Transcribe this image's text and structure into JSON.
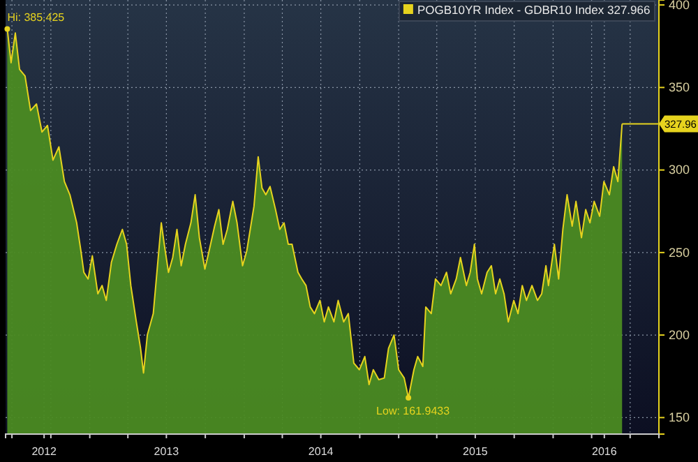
{
  "chart_data": {
    "type": "area",
    "legend": "top right",
    "grid": true,
    "xlim": [
      "2012-06-16",
      "2016-09-07"
    ],
    "ylim": [
      140,
      403
    ],
    "yticks": [
      150,
      200,
      250,
      300,
      350,
      400
    ],
    "xticks": [
      {
        "value": "2012-07-01",
        "label": null
      },
      {
        "value": "2012-09-15",
        "label": "2012"
      },
      {
        "value": "2012-10-01",
        "label": null
      },
      {
        "value": "2013-01-01",
        "label": null
      },
      {
        "value": "2013-04-01",
        "label": null
      },
      {
        "value": "2013-07-01",
        "label": "2013"
      },
      {
        "value": "2013-10-01",
        "label": null
      },
      {
        "value": "2014-01-01",
        "label": null
      },
      {
        "value": "2014-04-01",
        "label": null
      },
      {
        "value": "2014-07-01",
        "label": "2014"
      },
      {
        "value": "2014-10-01",
        "label": null
      },
      {
        "value": "2015-01-01",
        "label": null
      },
      {
        "value": "2015-04-01",
        "label": null
      },
      {
        "value": "2015-07-01",
        "label": "2015"
      },
      {
        "value": "2015-10-01",
        "label": null
      },
      {
        "value": "2016-01-01",
        "label": null
      },
      {
        "value": "2016-04-01",
        "label": null
      },
      {
        "value": "2016-05-01",
        "label": "2016"
      },
      {
        "value": "2016-07-01",
        "label": null
      }
    ],
    "annotations": [
      {
        "text": "Hi: 385.425",
        "x": "2012-06-20",
        "y": 385.425
      },
      {
        "text": "Low: 161.9433",
        "x": "2015-01-24",
        "y": 161.9433
      },
      "327.96"
    ],
    "series": [
      {
        "name": "POGB10YR Index - GDBR10 Index 327.966",
        "color": "#e6d31e",
        "x": [
          "2012-06-20",
          "2012-06-29",
          "2012-07-09",
          "2012-07-19",
          "2012-08-01",
          "2012-08-14",
          "2012-08-28",
          "2012-09-10",
          "2012-09-23",
          "2012-10-06",
          "2012-10-20",
          "2012-11-02",
          "2012-11-15",
          "2012-12-01",
          "2012-12-11",
          "2012-12-18",
          "2012-12-28",
          "2013-01-07",
          "2013-01-20",
          "2013-01-30",
          "2013-02-09",
          "2013-02-21",
          "2013-03-06",
          "2013-03-19",
          "2013-03-29",
          "2013-04-08",
          "2013-04-21",
          "2013-05-01",
          "2013-05-08",
          "2013-05-17",
          "2013-05-31",
          "2013-06-10",
          "2013-06-19",
          "2013-06-26",
          "2013-07-06",
          "2013-07-16",
          "2013-07-26",
          "2013-08-05",
          "2013-08-15",
          "2013-08-28",
          "2013-09-07",
          "2013-09-17",
          "2013-09-30",
          "2013-10-10",
          "2013-10-23",
          "2013-11-02",
          "2013-11-12",
          "2013-11-22",
          "2013-12-05",
          "2013-12-15",
          "2013-12-28",
          "2014-01-07",
          "2014-01-24",
          "2014-02-03",
          "2014-02-12",
          "2014-02-21",
          "2014-03-03",
          "2014-03-16",
          "2014-03-26",
          "2014-04-05",
          "2014-04-15",
          "2014-04-24",
          "2014-05-08",
          "2014-05-17",
          "2014-05-27",
          "2014-06-06",
          "2014-06-16",
          "2014-06-29",
          "2014-07-09",
          "2014-07-19",
          "2014-08-01",
          "2014-08-11",
          "2014-08-24",
          "2014-09-04",
          "2014-09-17",
          "2014-09-30",
          "2014-10-13",
          "2014-10-23",
          "2014-11-02",
          "2014-11-15",
          "2014-11-28",
          "2014-12-08",
          "2014-12-21",
          "2015-01-01",
          "2015-01-14",
          "2015-01-24",
          "2015-02-06",
          "2015-02-15",
          "2015-02-27",
          "2015-03-06",
          "2015-03-19",
          "2015-03-29",
          "2015-04-11",
          "2015-04-24",
          "2015-05-04",
          "2015-05-17",
          "2015-05-27",
          "2015-06-10",
          "2015-06-19",
          "2015-06-29",
          "2015-07-06",
          "2015-07-16",
          "2015-07-29",
          "2015-08-08",
          "2015-08-18",
          "2015-08-28",
          "2015-09-07",
          "2015-09-17",
          "2015-09-30",
          "2015-10-10",
          "2015-10-20",
          "2015-10-30",
          "2015-11-12",
          "2015-11-25",
          "2015-12-05",
          "2015-12-15",
          "2015-12-21",
          "2016-01-04",
          "2016-01-14",
          "2016-01-24",
          "2016-02-03",
          "2016-02-15",
          "2016-02-24",
          "2016-03-08",
          "2016-03-18",
          "2016-03-28",
          "2016-04-07",
          "2016-04-20",
          "2016-04-30",
          "2016-05-13",
          "2016-05-23",
          "2016-06-02",
          "2016-06-12"
        ],
        "values": [
          385.425,
          365,
          383,
          361,
          357,
          336,
          340,
          323,
          327,
          306,
          314,
          293,
          285,
          268,
          251,
          238,
          234,
          248,
          225,
          230,
          221,
          244,
          255,
          264,
          255,
          230,
          208,
          192,
          177,
          200,
          213,
          242,
          268,
          255,
          238,
          247,
          264,
          242,
          255,
          268,
          285,
          259,
          240,
          251,
          266,
          276,
          255,
          264,
          281,
          268,
          242,
          251,
          278,
          308,
          289,
          285,
          290,
          276,
          264,
          268,
          255,
          255,
          238,
          234,
          230,
          217,
          213,
          221,
          208,
          217,
          208,
          221,
          208,
          213,
          183,
          179,
          187,
          170,
          179,
          173,
          174,
          192,
          200,
          179,
          174,
          161.9433,
          179,
          187,
          181,
          217,
          213,
          234,
          230,
          238,
          225,
          234,
          247,
          230,
          238,
          255,
          234,
          225,
          238,
          242,
          225,
          234,
          225,
          208,
          221,
          213,
          230,
          221,
          230,
          221,
          225,
          242,
          230,
          255,
          234,
          264,
          285,
          266,
          281,
          259,
          276,
          268,
          281,
          272,
          293,
          285,
          302,
          293,
          327.966
        ]
      }
    ]
  }
}
